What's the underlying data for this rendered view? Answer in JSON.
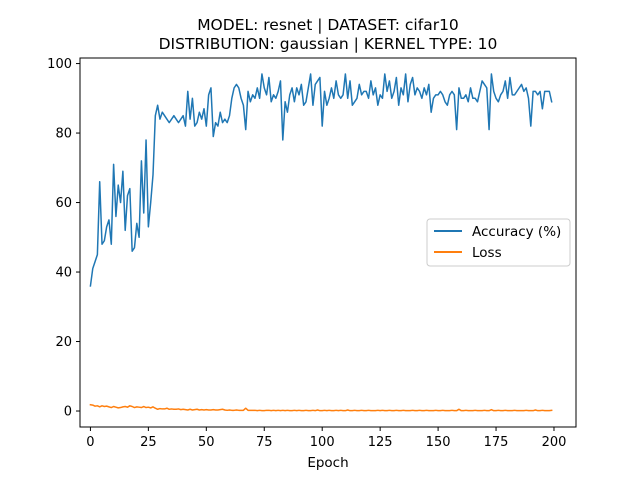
{
  "chart_data": {
    "type": "line",
    "title": [
      "MODEL: resnet | DATASET: cifar10",
      "DISTRIBUTION: gaussian | KERNEL TYPE: 10"
    ],
    "xlabel": "Epoch",
    "ylabel": "",
    "xlim": [
      -4.5,
      209.5
    ],
    "ylim": [
      -4.6,
      101.6
    ],
    "xticks": [
      0,
      25,
      50,
      75,
      100,
      125,
      150,
      175,
      200
    ],
    "yticks": [
      0,
      20,
      40,
      60,
      80,
      100
    ],
    "grid": false,
    "legend_position": "center-right",
    "x": [
      0,
      1,
      2,
      3,
      4,
      5,
      6,
      7,
      8,
      9,
      10,
      11,
      12,
      13,
      14,
      15,
      16,
      17,
      18,
      19,
      20,
      21,
      22,
      23,
      24,
      25,
      26,
      27,
      28,
      29,
      30,
      31,
      32,
      33,
      34,
      35,
      36,
      37,
      38,
      39,
      40,
      41,
      42,
      43,
      44,
      45,
      46,
      47,
      48,
      49,
      50,
      51,
      52,
      53,
      54,
      55,
      56,
      57,
      58,
      59,
      60,
      61,
      62,
      63,
      64,
      65,
      66,
      67,
      68,
      69,
      70,
      71,
      72,
      73,
      74,
      75,
      76,
      77,
      78,
      79,
      80,
      81,
      82,
      83,
      84,
      85,
      86,
      87,
      88,
      89,
      90,
      91,
      92,
      93,
      94,
      95,
      96,
      97,
      98,
      99,
      100,
      101,
      102,
      103,
      104,
      105,
      106,
      107,
      108,
      109,
      110,
      111,
      112,
      113,
      114,
      115,
      116,
      117,
      118,
      119,
      120,
      121,
      122,
      123,
      124,
      125,
      126,
      127,
      128,
      129,
      130,
      131,
      132,
      133,
      134,
      135,
      136,
      137,
      138,
      139,
      140,
      141,
      142,
      143,
      144,
      145,
      146,
      147,
      148,
      149,
      150,
      151,
      152,
      153,
      154,
      155,
      156,
      157,
      158,
      159,
      160,
      161,
      162,
      163,
      164,
      165,
      166,
      167,
      168,
      169,
      170,
      171,
      172,
      173,
      174,
      175,
      176,
      177,
      178,
      179,
      180,
      181,
      182,
      183,
      184,
      185,
      186,
      187,
      188,
      189,
      190,
      191,
      192,
      193,
      194,
      195,
      196,
      197,
      198,
      199
    ],
    "series": [
      {
        "name": "Accuracy (%)",
        "color": "#1f77b4",
        "values": [
          36,
          41,
          43,
          45,
          66,
          48,
          49,
          53,
          55,
          48,
          71,
          56,
          65,
          60,
          69,
          52,
          62,
          64,
          46,
          47,
          54,
          50,
          72,
          57,
          78,
          53,
          60,
          68,
          85,
          88,
          84,
          86,
          85,
          84,
          83,
          84,
          85,
          84,
          83,
          84,
          85,
          82,
          92,
          84,
          90,
          82,
          83,
          86,
          84,
          87,
          82,
          91,
          93,
          79,
          83,
          82,
          86,
          83,
          84,
          83,
          85,
          90,
          93,
          94,
          93,
          90,
          88,
          81,
          92,
          89,
          91,
          90,
          93,
          90,
          97,
          93,
          91,
          96,
          89,
          91,
          90,
          92,
          95,
          78,
          89,
          86,
          91,
          93,
          89,
          93,
          91,
          94,
          88,
          89,
          93,
          97,
          88,
          94,
          95,
          96,
          82,
          92,
          88,
          90,
          93,
          90,
          95,
          91,
          90,
          91,
          97,
          90,
          95,
          88,
          89,
          90,
          94,
          91,
          92,
          92,
          90,
          95,
          91,
          93,
          88,
          91,
          90,
          97,
          92,
          95,
          90,
          92,
          96,
          88,
          93,
          91,
          97,
          89,
          94,
          96,
          91,
          93,
          92,
          90,
          93,
          91,
          94,
          86,
          90,
          91,
          91,
          92,
          91,
          89,
          88,
          91,
          92,
          91,
          81,
          93,
          90,
          90,
          91,
          89,
          93,
          90,
          90,
          89,
          92,
          95,
          94,
          93,
          81,
          97,
          92,
          90,
          89,
          91,
          92,
          95,
          90,
          96,
          91,
          91,
          92,
          93,
          94,
          92,
          93,
          90,
          82,
          92,
          92,
          91,
          92,
          87,
          92,
          92,
          92,
          89
        ]
      },
      {
        "name": "Loss",
        "color": "#ff7f0e",
        "values": [
          1.8,
          1.7,
          1.4,
          1.5,
          1.2,
          1.5,
          1.3,
          1.4,
          1.2,
          1.0,
          1.3,
          1.1,
          0.9,
          1.0,
          1.2,
          1.3,
          1.1,
          1.5,
          1.3,
          1.0,
          1.2,
          1.1,
          1.0,
          1.3,
          1.0,
          1.1,
          0.9,
          1.2,
          0.8,
          0.5,
          0.7,
          0.6,
          0.6,
          0.8,
          0.5,
          0.6,
          0.5,
          0.5,
          0.6,
          0.4,
          0.5,
          0.4,
          0.3,
          0.5,
          0.3,
          0.4,
          0.5,
          0.3,
          0.4,
          0.3,
          0.4,
          0.3,
          0.3,
          0.4,
          0.3,
          0.3,
          0.4,
          0.5,
          0.3,
          0.2,
          0.3,
          0.2,
          0.2,
          0.3,
          0.2,
          0.2,
          0.2,
          0.8,
          0.2,
          0.2,
          0.2,
          0.2,
          0.1,
          0.2,
          0.1,
          0.1,
          0.2,
          0.2,
          0.1,
          0.2,
          0.1,
          0.2,
          0.1,
          0.2,
          0.1,
          0.2,
          0.1,
          0.1,
          0.2,
          0.1,
          0.2,
          0.1,
          0.1,
          0.2,
          0.1,
          0.1,
          0.2,
          0.1,
          0.3,
          0.1,
          0.1,
          0.2,
          0.1,
          0.2,
          0.1,
          0.1,
          0.2,
          0.1,
          0.2,
          0.1,
          0.1,
          0.3,
          0.1,
          0.1,
          0.2,
          0.1,
          0.1,
          0.2,
          0.1,
          0.1,
          0.2,
          0.1,
          0.1,
          0.1,
          0.2,
          0.1,
          0.2,
          0.1,
          0.1,
          0.2,
          0.1,
          0.1,
          0.2,
          0.1,
          0.1,
          0.2,
          0.1,
          0.1,
          0.1,
          0.2,
          0.1,
          0.1,
          0.2,
          0.1,
          0.1,
          0.2,
          0.1,
          0.1,
          0.1,
          0.2,
          0.1,
          0.1,
          0.2,
          0.1,
          0.1,
          0.1,
          0.2,
          0.1,
          0.1,
          0.5,
          0.1,
          0.1,
          0.2,
          0.1,
          0.1,
          0.1,
          0.2,
          0.1,
          0.1,
          0.1,
          0.2,
          0.1,
          0.1,
          0.4,
          0.1,
          0.1,
          0.2,
          0.1,
          0.1,
          0.2,
          0.1,
          0.1,
          0.1,
          0.2,
          0.1,
          0.1,
          0.1,
          0.1,
          0.2,
          0.1,
          0.1,
          0.1,
          0.3,
          0.1,
          0.1,
          0.2,
          0.1,
          0.1,
          0.1,
          0.2
        ]
      }
    ]
  }
}
